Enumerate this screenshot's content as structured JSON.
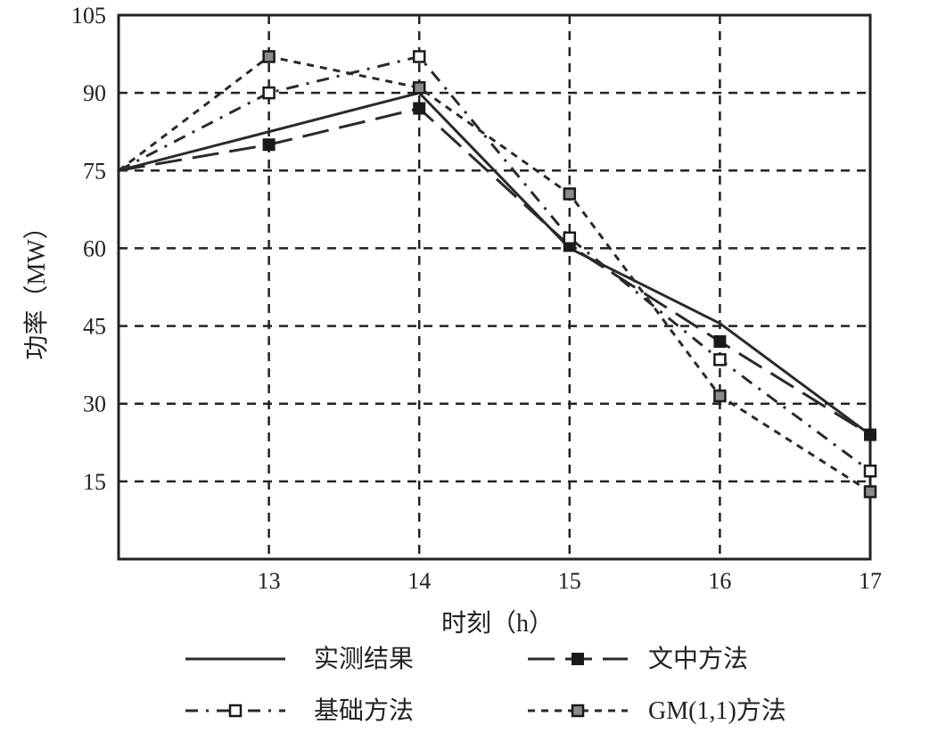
{
  "chart_data": {
    "type": "line",
    "xlabel": "时刻（h）",
    "ylabel": "功率（MW）",
    "x_ticks": [
      "13",
      "14",
      "15",
      "16",
      "17"
    ],
    "y_ticks": [
      "15",
      "30",
      "45",
      "60",
      "75",
      "90",
      "105"
    ],
    "xlim": [
      12,
      17
    ],
    "ylim": [
      0,
      105
    ],
    "grid": true,
    "legend_position": "bottom",
    "series": [
      {
        "name": "实测结果",
        "style": "solid",
        "marker": "none",
        "color": "#2a2a2a",
        "x": [
          12,
          14,
          15,
          16,
          17
        ],
        "y": [
          75,
          90,
          60,
          45.5,
          24
        ]
      },
      {
        "name": "文中方法",
        "style": "long-dash",
        "marker": "filled-square",
        "color": "#2a2a2a",
        "x": [
          12,
          13,
          14,
          15,
          16,
          17
        ],
        "y": [
          75,
          80,
          87,
          60.5,
          42,
          24
        ]
      },
      {
        "name": "基础方法",
        "style": "dash-dot",
        "marker": "open-square",
        "color": "#2a2a2a",
        "x": [
          12,
          13,
          14,
          15,
          16,
          17
        ],
        "y": [
          75,
          90,
          97,
          62,
          38.5,
          17
        ]
      },
      {
        "name": "GM(1,1)方法",
        "style": "short-dash",
        "marker": "gray-square",
        "color": "#2a2a2a",
        "x": [
          12,
          13,
          14,
          15,
          16,
          17
        ],
        "y": [
          75,
          97,
          91,
          70.5,
          31.5,
          13
        ]
      }
    ]
  }
}
